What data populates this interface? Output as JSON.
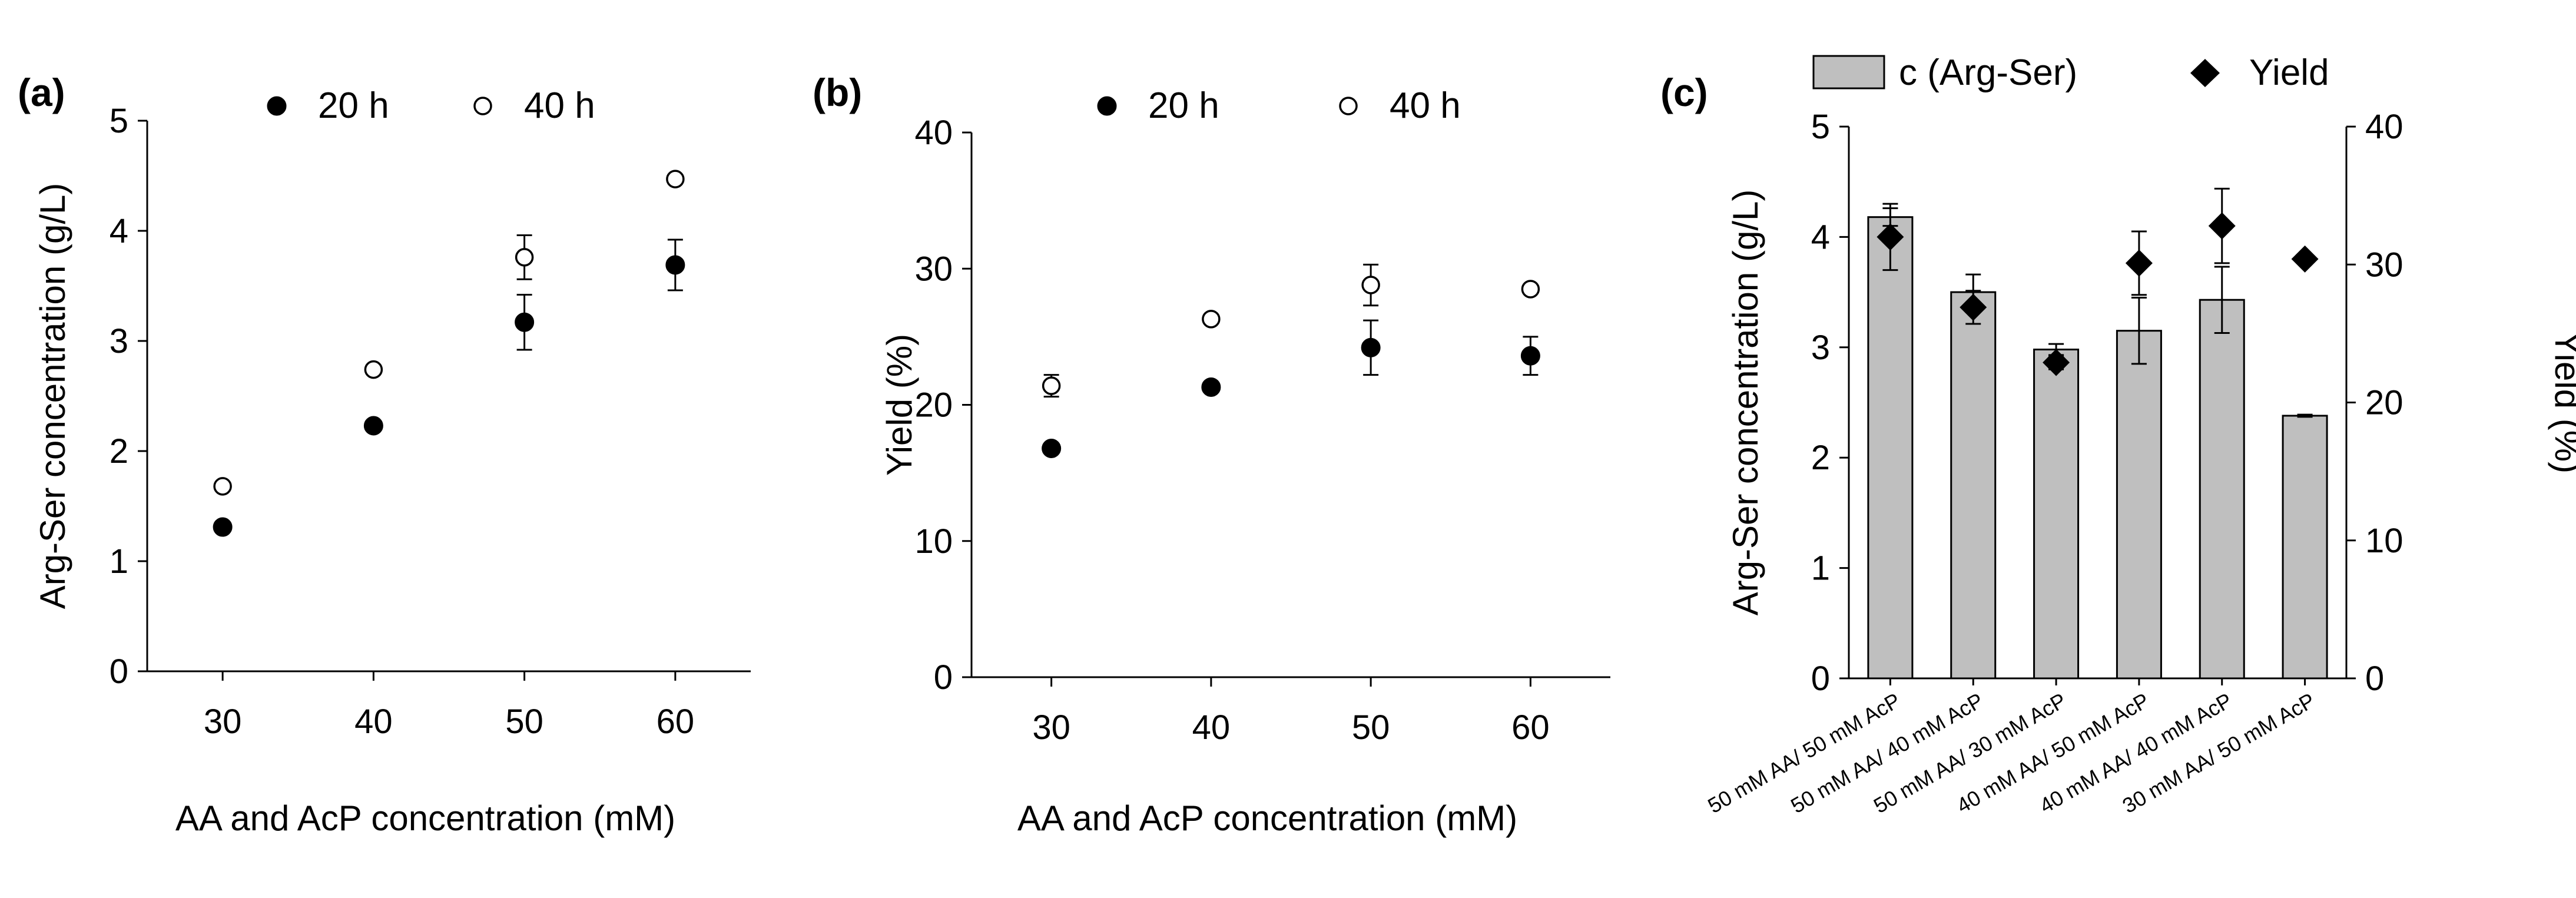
{
  "chart_data": [
    {
      "panel": "(a)",
      "type": "scatter",
      "xlabel": "AA and AcP concentration (mM)",
      "ylabel": "Arg-Ser concentration (g/L)",
      "x": [
        30,
        40,
        50,
        60
      ],
      "xlim": [
        25,
        65
      ],
      "ylim": [
        0,
        5
      ],
      "xticks": [
        "30",
        "40",
        "50",
        "60"
      ],
      "yticks": [
        "0",
        "1",
        "2",
        "3",
        "4",
        "5"
      ],
      "legend": "top",
      "series": [
        {
          "name": "20 h",
          "marker": "filled-circle",
          "values": [
            1.31,
            2.23,
            3.17,
            3.69
          ],
          "errors": [
            0.03,
            0.03,
            0.25,
            0.23
          ]
        },
        {
          "name": "40 h",
          "marker": "open-circle",
          "values": [
            1.68,
            2.74,
            3.76,
            4.47
          ],
          "errors": [
            0.03,
            0.03,
            0.2,
            0.08
          ]
        }
      ]
    },
    {
      "panel": "(b)",
      "type": "scatter",
      "xlabel": "AA and AcP concentration (mM)",
      "ylabel": "Yield (%)",
      "x": [
        30,
        40,
        50,
        60
      ],
      "xlim": [
        25,
        65
      ],
      "ylim": [
        0,
        40
      ],
      "xticks": [
        "30",
        "40",
        "50",
        "60"
      ],
      "yticks": [
        "0",
        "10",
        "20",
        "30",
        "40"
      ],
      "legend": "top",
      "series": [
        {
          "name": "20 h",
          "marker": "filled-circle",
          "values": [
            16.8,
            21.3,
            24.2,
            23.6
          ],
          "errors": [
            0.3,
            0.3,
            2.0,
            1.4
          ]
        },
        {
          "name": "40 h",
          "marker": "open-circle",
          "values": [
            21.4,
            26.3,
            28.8,
            28.5
          ],
          "errors": [
            0.8,
            0.3,
            1.5,
            0.7
          ]
        }
      ]
    },
    {
      "panel": "(c)",
      "type": "bar",
      "categories": [
        "50 mM AA/ 50 mM AcP",
        "50 mM AA/ 40 mM AcP",
        "50 mM AA/ 30 mM AcP",
        "40 mM AA/ 50 mM AcP",
        "40 mM AA/ 40 mM AcP",
        "30 mM AA/ 50 mM AcP"
      ],
      "ylabel": "Arg-Ser concentration (g/L)",
      "ylim": [
        0,
        5
      ],
      "yticks": [
        "0",
        "1",
        "2",
        "3",
        "4",
        "5"
      ],
      "y2label": "Yield (%)",
      "y2lim": [
        0,
        40
      ],
      "y2ticks": [
        "0",
        "10",
        "20",
        "30",
        "40"
      ],
      "legend": "top",
      "bar_color": "#bfbfbf",
      "series": [
        {
          "name": "c (Arg-Ser)",
          "kind": "bar",
          "axis": "left",
          "values": [
            4.18,
            3.5,
            2.98,
            3.15,
            3.43,
            2.38
          ],
          "errors": [
            0.08,
            0.16,
            0.05,
            0.3,
            0.3,
            0.01
          ]
        },
        {
          "name": "Yield",
          "kind": "diamond",
          "axis": "right",
          "values": [
            32.0,
            26.9,
            22.9,
            30.1,
            32.8,
            30.4
          ],
          "errors": [
            2.4,
            1.2,
            0.5,
            2.3,
            2.7,
            0.0
          ]
        }
      ]
    }
  ]
}
